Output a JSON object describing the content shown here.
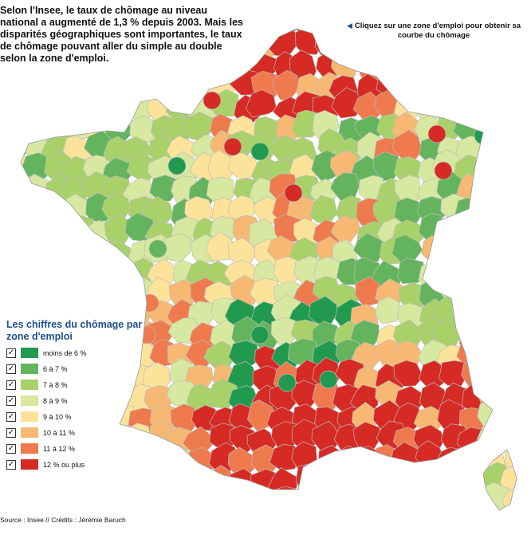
{
  "intro": "Selon l'Insee, le taux de chômage au niveau national a augmenté de 1,3 % depuis 2003. Mais les disparités géographiques sont importantes, le taux de chômage pouvant aller du simple au double selon la zone d'emploi.",
  "hint": "Cliquez sur une zone d'emploi pour obtenir sa courbe du chômage",
  "legend": {
    "title": "Les chiffres du chômage par zone d'emploi",
    "check_glyph": "✓",
    "items": [
      {
        "label": "moins de 6 %",
        "color": "#219a4f"
      },
      {
        "label": "6 à 7 %",
        "color": "#64b45e"
      },
      {
        "label": "7 à 8 %",
        "color": "#a9d16a"
      },
      {
        "label": "8 à 9 %",
        "color": "#d7e8a0"
      },
      {
        "label": "9 à 10 %",
        "color": "#fde39a"
      },
      {
        "label": "10 à 11 %",
        "color": "#f7b873"
      },
      {
        "label": "11 à 12 %",
        "color": "#ef7a4d"
      },
      {
        "label": "12 % ou plus",
        "color": "#d62a24"
      }
    ]
  },
  "source": "Source : Insee // Crédits : Jérémie Baruch",
  "colors": {
    "border": "#bdbdbd",
    "title": "#1d4f8f"
  }
}
